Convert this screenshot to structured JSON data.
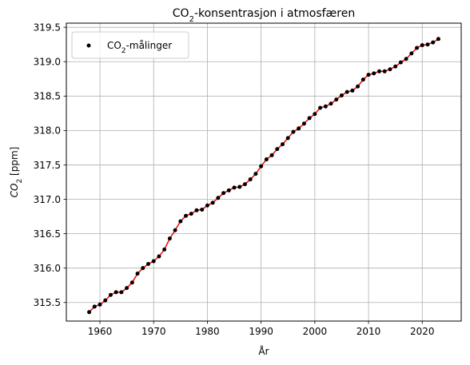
{
  "chart_data": {
    "type": "line",
    "title": {
      "pre": "CO",
      "sub": "2",
      "post": "-konsentrasjon i atmosfæren"
    },
    "xlabel": "År",
    "ylabel": {
      "pre": "CO",
      "sub": "2",
      "post": " [ppm]"
    },
    "xlim": [
      1953.75,
      2027.25
    ],
    "ylim": [
      315.23,
      319.56
    ],
    "xticks": [
      1960,
      1970,
      1980,
      1990,
      2000,
      2010,
      2020
    ],
    "yticks": [
      315.5,
      316.0,
      316.5,
      317.0,
      317.5,
      318.0,
      318.5,
      319.0,
      319.5
    ],
    "grid": true,
    "legend": {
      "position": "top-left",
      "entries": [
        {
          "pre": "CO",
          "sub": "2",
          "post": "-målinger"
        }
      ]
    },
    "series": [
      {
        "style": "points",
        "color": "#000000",
        "legend_index": 0,
        "x": [
          1958,
          1959,
          1960,
          1961,
          1962,
          1963,
          1964,
          1965,
          1966,
          1967,
          1968,
          1969,
          1970,
          1971,
          1972,
          1973,
          1974,
          1975,
          1976,
          1977,
          1978,
          1979,
          1980,
          1981,
          1982,
          1983,
          1984,
          1985,
          1986,
          1987,
          1988,
          1989,
          1990,
          1991,
          1992,
          1993,
          1994,
          1995,
          1996,
          1997,
          1998,
          1999,
          2000,
          2001,
          2002,
          2003,
          2004,
          2005,
          2006,
          2007,
          2008,
          2009,
          2010,
          2011,
          2012,
          2013,
          2014,
          2015,
          2016,
          2017,
          2018,
          2019,
          2020,
          2021,
          2022,
          2023
        ],
        "y": [
          315.36,
          315.44,
          315.47,
          315.53,
          315.61,
          315.65,
          315.65,
          315.71,
          315.79,
          315.92,
          316.0,
          316.06,
          316.1,
          316.17,
          316.27,
          316.43,
          316.55,
          316.68,
          316.76,
          316.79,
          316.84,
          316.85,
          316.91,
          316.95,
          317.02,
          317.09,
          317.13,
          317.17,
          317.18,
          317.22,
          317.29,
          317.37,
          317.48,
          317.58,
          317.64,
          317.73,
          317.8,
          317.89,
          317.98,
          318.03,
          318.1,
          318.18,
          318.24,
          318.33,
          318.35,
          318.39,
          318.45,
          318.51,
          318.56,
          318.58,
          318.64,
          318.74,
          318.81,
          318.83,
          318.86,
          318.86,
          318.89,
          318.93,
          318.99,
          319.04,
          319.12,
          319.2,
          319.24,
          319.25,
          319.28,
          319.33
        ]
      },
      {
        "style": "line",
        "color": "#ff0000",
        "x": [
          1958,
          1959,
          1960,
          1961,
          1962,
          1963,
          1964,
          1965,
          1966,
          1967,
          1968,
          1969,
          1970,
          1971,
          1972,
          1973,
          1974,
          1975,
          1976,
          1977,
          1978,
          1979,
          1980,
          1981,
          1982,
          1983,
          1984,
          1985,
          1986,
          1987,
          1988,
          1989,
          1990,
          1991,
          1992,
          1993,
          1994,
          1995,
          1996,
          1997,
          1998,
          1999,
          2000,
          2001,
          2002,
          2003,
          2004,
          2005,
          2006,
          2007,
          2008,
          2009,
          2010,
          2011,
          2012,
          2013,
          2014,
          2015,
          2016,
          2017,
          2018,
          2019,
          2020,
          2021,
          2022,
          2023
        ],
        "y": [
          315.36,
          315.44,
          315.47,
          315.53,
          315.61,
          315.65,
          315.65,
          315.71,
          315.79,
          315.92,
          316.0,
          316.06,
          316.1,
          316.17,
          316.27,
          316.43,
          316.55,
          316.68,
          316.76,
          316.79,
          316.84,
          316.85,
          316.91,
          316.95,
          317.02,
          317.09,
          317.13,
          317.17,
          317.18,
          317.22,
          317.29,
          317.37,
          317.48,
          317.58,
          317.64,
          317.73,
          317.8,
          317.89,
          317.98,
          318.03,
          318.1,
          318.18,
          318.24,
          318.33,
          318.35,
          318.39,
          318.45,
          318.51,
          318.56,
          318.58,
          318.64,
          318.74,
          318.81,
          318.83,
          318.86,
          318.86,
          318.89,
          318.93,
          318.99,
          319.04,
          319.12,
          319.2,
          319.24,
          319.25,
          319.28,
          319.33
        ]
      }
    ]
  }
}
